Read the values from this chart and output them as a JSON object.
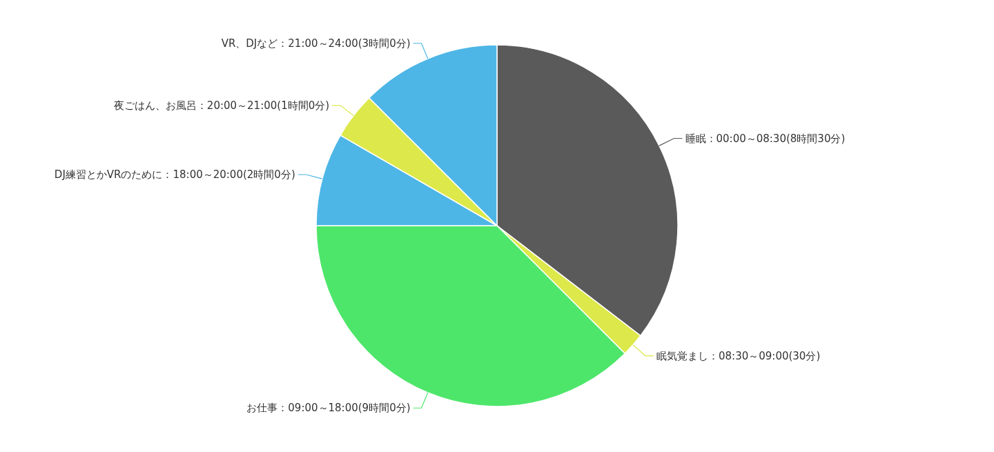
{
  "chart_data": {
    "type": "pie",
    "categories": [
      "睡眠：00:00～08:30(8時間30分)",
      "眠気覚まし：08:30～09:00(30分)",
      "お仕事：09:00～18:00(9時間0分)",
      "DJ練習とかVRのために：18:00～20:00(2時間0分)",
      "夜ごはん、お風呂：20:00～21:00(1時間0分)",
      "VR、DJなど：21:00～24:00(3時間0分)"
    ],
    "values": [
      8.5,
      0.5,
      9,
      2,
      1,
      3
    ],
    "colors": [
      "#5a5a5a",
      "#dde84a",
      "#4de66a",
      "#4db6e6",
      "#dde84a",
      "#4db6e6"
    ]
  }
}
